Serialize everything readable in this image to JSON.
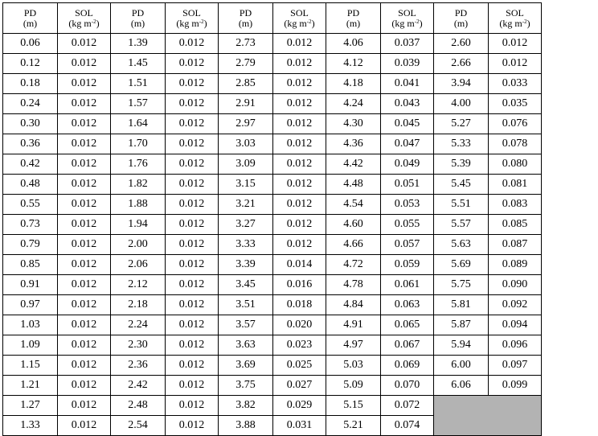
{
  "header": {
    "pd_label": "PD",
    "pd_unit": "(m)",
    "sol_label": "SOL",
    "sol_unit_pre": "(kg m",
    "sol_unit_sup": "-2",
    "sol_unit_post": ")"
  },
  "rows": [
    [
      "0.06",
      "0.012",
      "1.39",
      "0.012",
      "2.73",
      "0.012",
      "4.06",
      "0.037",
      "2.60",
      "0.012"
    ],
    [
      "0.12",
      "0.012",
      "1.45",
      "0.012",
      "2.79",
      "0.012",
      "4.12",
      "0.039",
      "2.66",
      "0.012"
    ],
    [
      "0.18",
      "0.012",
      "1.51",
      "0.012",
      "2.85",
      "0.012",
      "4.18",
      "0.041",
      "3.94",
      "0.033"
    ],
    [
      "0.24",
      "0.012",
      "1.57",
      "0.012",
      "2.91",
      "0.012",
      "4.24",
      "0.043",
      "4.00",
      "0.035"
    ],
    [
      "0.30",
      "0.012",
      "1.64",
      "0.012",
      "2.97",
      "0.012",
      "4.30",
      "0.045",
      "5.27",
      "0.076"
    ],
    [
      "0.36",
      "0.012",
      "1.70",
      "0.012",
      "3.03",
      "0.012",
      "4.36",
      "0.047",
      "5.33",
      "0.078"
    ],
    [
      "0.42",
      "0.012",
      "1.76",
      "0.012",
      "3.09",
      "0.012",
      "4.42",
      "0.049",
      "5.39",
      "0.080"
    ],
    [
      "0.48",
      "0.012",
      "1.82",
      "0.012",
      "3.15",
      "0.012",
      "4.48",
      "0.051",
      "5.45",
      "0.081"
    ],
    [
      "0.55",
      "0.012",
      "1.88",
      "0.012",
      "3.21",
      "0.012",
      "4.54",
      "0.053",
      "5.51",
      "0.083"
    ],
    [
      "0.73",
      "0.012",
      "1.94",
      "0.012",
      "3.27",
      "0.012",
      "4.60",
      "0.055",
      "5.57",
      "0.085"
    ],
    [
      "0.79",
      "0.012",
      "2.00",
      "0.012",
      "3.33",
      "0.012",
      "4.66",
      "0.057",
      "5.63",
      "0.087"
    ],
    [
      "0.85",
      "0.012",
      "2.06",
      "0.012",
      "3.39",
      "0.014",
      "4.72",
      "0.059",
      "5.69",
      "0.089"
    ],
    [
      "0.91",
      "0.012",
      "2.12",
      "0.012",
      "3.45",
      "0.016",
      "4.78",
      "0.061",
      "5.75",
      "0.090"
    ],
    [
      "0.97",
      "0.012",
      "2.18",
      "0.012",
      "3.51",
      "0.018",
      "4.84",
      "0.063",
      "5.81",
      "0.092"
    ],
    [
      "1.03",
      "0.012",
      "2.24",
      "0.012",
      "3.57",
      "0.020",
      "4.91",
      "0.065",
      "5.87",
      "0.094"
    ],
    [
      "1.09",
      "0.012",
      "2.30",
      "0.012",
      "3.63",
      "0.023",
      "4.97",
      "0.067",
      "5.94",
      "0.096"
    ],
    [
      "1.15",
      "0.012",
      "2.36",
      "0.012",
      "3.69",
      "0.025",
      "5.03",
      "0.069",
      "6.00",
      "0.097"
    ],
    [
      "1.21",
      "0.012",
      "2.42",
      "0.012",
      "3.75",
      "0.027",
      "5.09",
      "0.070",
      "6.06",
      "0.099"
    ],
    [
      "1.27",
      "0.012",
      "2.48",
      "0.012",
      "3.82",
      "0.029",
      "5.15",
      "0.072",
      "",
      ""
    ],
    [
      "1.33",
      "0.012",
      "2.54",
      "0.012",
      "3.88",
      "0.031",
      "5.21",
      "0.074",
      "",
      ""
    ]
  ],
  "shaded_cell_color": "#b3b3b3"
}
